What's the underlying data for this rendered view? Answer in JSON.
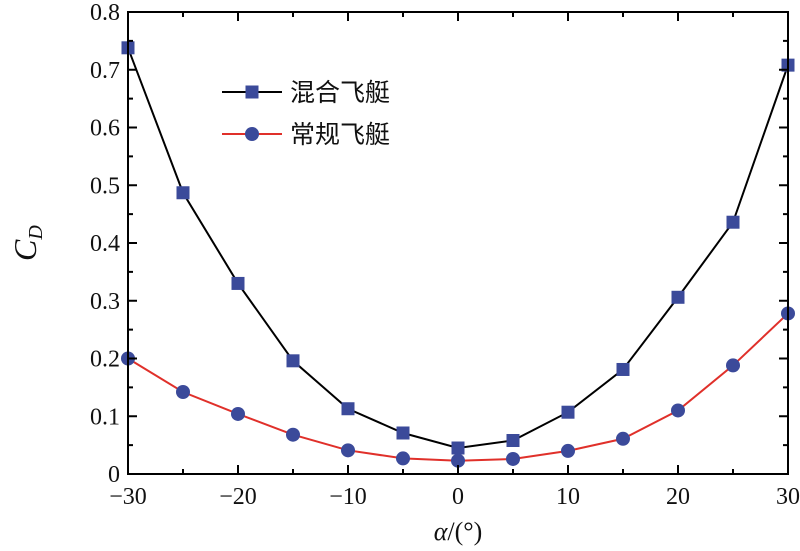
{
  "chart_data": {
    "type": "line",
    "title": "",
    "xlabel": "α/(°)",
    "ylabel": "C_D",
    "ylabel_main": "C",
    "ylabel_sub": "D",
    "xlabel_greek": "α",
    "xlabel_rest": "/(°)",
    "xlim": [
      -30,
      30
    ],
    "ylim": [
      0,
      0.8
    ],
    "xticks": [
      -30,
      -20,
      -10,
      0,
      10,
      20,
      30
    ],
    "xtick_labels": [
      "−30",
      "−20",
      "−10",
      "0",
      "10",
      "20",
      "30"
    ],
    "yticks": [
      0,
      0.1,
      0.2,
      0.3,
      0.4,
      0.5,
      0.6,
      0.7,
      0.8
    ],
    "ytick_labels": [
      "0",
      "0.1",
      "0.2",
      "0.3",
      "0.4",
      "0.5",
      "0.6",
      "0.7",
      "0.8"
    ],
    "grid": false,
    "legend_position": "top-left",
    "x": [
      -30,
      -25,
      -20,
      -15,
      -10,
      -5,
      0,
      5,
      10,
      15,
      20,
      25,
      30
    ],
    "series": [
      {
        "name": "混合飞艇",
        "marker": "square",
        "line_color": "#000000",
        "marker_color": "#3b4a9a",
        "values": [
          0.738,
          0.487,
          0.33,
          0.196,
          0.113,
          0.071,
          0.045,
          0.058,
          0.107,
          0.181,
          0.306,
          0.436,
          0.708
        ]
      },
      {
        "name": "常规飞艇",
        "marker": "circle",
        "line_color": "#e0302a",
        "marker_color": "#3b4a9a",
        "values": [
          0.2,
          0.142,
          0.104,
          0.068,
          0.041,
          0.027,
          0.023,
          0.026,
          0.04,
          0.061,
          0.11,
          0.188,
          0.278
        ]
      }
    ]
  }
}
